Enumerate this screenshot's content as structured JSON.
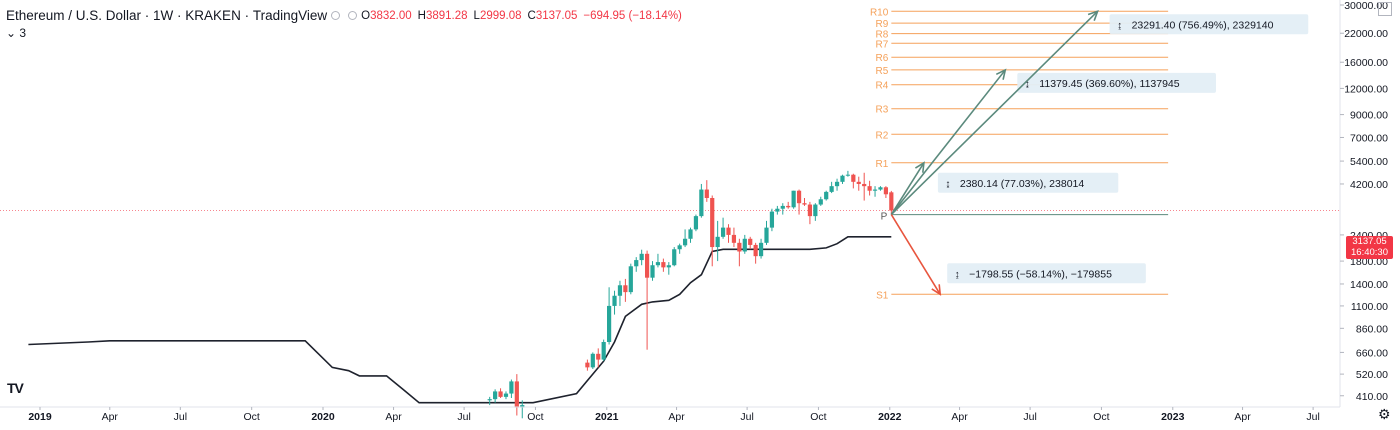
{
  "legend": {
    "symbol": "Ethereum / U.S. Dollar",
    "interval": "1W",
    "exchange": "KRAKEN",
    "source": "TradingView",
    "o_label": "O",
    "o_value": "3832.00",
    "h_label": "H",
    "h_value": "3891.28",
    "l_label": "L",
    "l_value": "2999.08",
    "c_label": "C",
    "c_value": "3137.05",
    "change": "−694.95 (−18.14%)",
    "sub_indicator": "3"
  },
  "price_tag": {
    "price": "3137.05",
    "countdown": "16:40:30"
  },
  "logo_text": "TV",
  "icons": {
    "gear": "gear-icon",
    "logo": "tradingview-logo-icon",
    "layout": "layout-icon"
  },
  "colors": {
    "up": "#26a69a",
    "down": "#ef5350",
    "pivot": "#f5a15a",
    "pivot_line": "#5b8a7d",
    "projection_up": "#5b8a7d",
    "projection_down": "#e8553e",
    "trend": "#1e222d"
  },
  "chart_data": {
    "type": "candlestick",
    "interval": "1W",
    "y_scale": "log",
    "ylim": [
      400,
      30000
    ],
    "y_ticks": [
      "30000.00",
      "22000.00",
      "16000.00",
      "12000.00",
      "9000.00",
      "7000.00",
      "5400.00",
      "4200.00",
      "3137.05",
      "2400.00",
      "1800.00",
      "1400.00",
      "1100.00",
      "860.00",
      "660.00",
      "520.00",
      "410.00"
    ],
    "x_ticks": [
      "2019",
      "Apr",
      "Jul",
      "Oct",
      "2020",
      "Apr",
      "Jul",
      "Oct",
      "2021",
      "Apr",
      "Jul",
      "Oct",
      "2022",
      "Apr",
      "Jul",
      "Oct",
      "2023",
      "Apr",
      "Jul"
    ],
    "x_tick_year_labels": [
      "2019",
      "2020",
      "2021",
      "2022",
      "2023"
    ],
    "last_close": 3137.05,
    "candles": [
      {
        "week": "2020-08-03",
        "o": 390,
        "h": 405,
        "l": 370,
        "c": 395
      },
      {
        "week": "2020-08-10",
        "o": 395,
        "h": 440,
        "l": 380,
        "c": 430
      },
      {
        "week": "2020-08-17",
        "o": 430,
        "h": 445,
        "l": 400,
        "c": 405
      },
      {
        "week": "2020-08-24",
        "o": 405,
        "h": 430,
        "l": 395,
        "c": 420
      },
      {
        "week": "2020-08-31",
        "o": 420,
        "h": 490,
        "l": 400,
        "c": 480
      },
      {
        "week": "2020-09-07",
        "o": 480,
        "h": 520,
        "l": 330,
        "c": 360
      },
      {
        "week": "2020-09-14",
        "o": 360,
        "h": 390,
        "l": 320,
        "c": 370
      },
      {
        "week": "2020-12-07",
        "o": 590,
        "h": 610,
        "l": 540,
        "c": 560
      },
      {
        "week": "2020-12-14",
        "o": 560,
        "h": 660,
        "l": 550,
        "c": 650
      },
      {
        "week": "2020-12-21",
        "o": 650,
        "h": 690,
        "l": 560,
        "c": 610
      },
      {
        "week": "2020-12-28",
        "o": 610,
        "h": 760,
        "l": 600,
        "c": 740
      },
      {
        "week": "2021-01-04",
        "o": 740,
        "h": 1350,
        "l": 720,
        "c": 1100
      },
      {
        "week": "2021-01-11",
        "o": 1100,
        "h": 1300,
        "l": 1000,
        "c": 1230
      },
      {
        "week": "2021-01-18",
        "o": 1230,
        "h": 1450,
        "l": 1100,
        "c": 1380
      },
      {
        "week": "2021-01-25",
        "o": 1380,
        "h": 1480,
        "l": 1150,
        "c": 1280
      },
      {
        "week": "2021-02-01",
        "o": 1280,
        "h": 1750,
        "l": 1250,
        "c": 1700
      },
      {
        "week": "2021-02-08",
        "o": 1700,
        "h": 1880,
        "l": 1600,
        "c": 1820
      },
      {
        "week": "2021-02-15",
        "o": 1820,
        "h": 2040,
        "l": 1720,
        "c": 1950
      },
      {
        "week": "2021-02-22",
        "o": 1950,
        "h": 2020,
        "l": 680,
        "c": 1500
      },
      {
        "week": "2021-03-01",
        "o": 1500,
        "h": 1800,
        "l": 1450,
        "c": 1720
      },
      {
        "week": "2021-03-08",
        "o": 1720,
        "h": 1950,
        "l": 1680,
        "c": 1780
      },
      {
        "week": "2021-03-15",
        "o": 1780,
        "h": 1850,
        "l": 1600,
        "c": 1680
      },
      {
        "week": "2021-03-22",
        "o": 1680,
        "h": 1780,
        "l": 1550,
        "c": 1720
      },
      {
        "week": "2021-03-29",
        "o": 1720,
        "h": 2100,
        "l": 1700,
        "c": 2050
      },
      {
        "week": "2021-04-05",
        "o": 2050,
        "h": 2180,
        "l": 1950,
        "c": 2140
      },
      {
        "week": "2021-04-12",
        "o": 2140,
        "h": 2550,
        "l": 2100,
        "c": 2300
      },
      {
        "week": "2021-04-19",
        "o": 2300,
        "h": 2600,
        "l": 2200,
        "c": 2550
      },
      {
        "week": "2021-04-26",
        "o": 2550,
        "h": 3000,
        "l": 2500,
        "c": 2950
      },
      {
        "week": "2021-05-03",
        "o": 2950,
        "h": 4200,
        "l": 2900,
        "c": 3950
      },
      {
        "week": "2021-05-10",
        "o": 3950,
        "h": 4380,
        "l": 3450,
        "c": 3600
      },
      {
        "week": "2021-05-17",
        "o": 3600,
        "h": 3700,
        "l": 1700,
        "c": 2100
      },
      {
        "week": "2021-05-24",
        "o": 2100,
        "h": 2800,
        "l": 1800,
        "c": 2350
      },
      {
        "week": "2021-05-31",
        "o": 2350,
        "h": 2900,
        "l": 2300,
        "c": 2600
      },
      {
        "week": "2021-06-07",
        "o": 2600,
        "h": 2700,
        "l": 2200,
        "c": 2400
      },
      {
        "week": "2021-06-14",
        "o": 2400,
        "h": 2600,
        "l": 2100,
        "c": 2200
      },
      {
        "week": "2021-06-21",
        "o": 2200,
        "h": 2300,
        "l": 1700,
        "c": 2000
      },
      {
        "week": "2021-06-28",
        "o": 2000,
        "h": 2400,
        "l": 1950,
        "c": 2300
      },
      {
        "week": "2021-07-05",
        "o": 2300,
        "h": 2350,
        "l": 2050,
        "c": 2150
      },
      {
        "week": "2021-07-12",
        "o": 2150,
        "h": 2200,
        "l": 1750,
        "c": 1900
      },
      {
        "week": "2021-07-19",
        "o": 1900,
        "h": 2300,
        "l": 1850,
        "c": 2200
      },
      {
        "week": "2021-07-26",
        "o": 2200,
        "h": 2800,
        "l": 2150,
        "c": 2600
      },
      {
        "week": "2021-08-02",
        "o": 2600,
        "h": 3200,
        "l": 2500,
        "c": 3100
      },
      {
        "week": "2021-08-09",
        "o": 3100,
        "h": 3300,
        "l": 3000,
        "c": 3200
      },
      {
        "week": "2021-08-16",
        "o": 3200,
        "h": 3400,
        "l": 3000,
        "c": 3300
      },
      {
        "week": "2021-08-23",
        "o": 3300,
        "h": 3450,
        "l": 3200,
        "c": 3250
      },
      {
        "week": "2021-08-30",
        "o": 3250,
        "h": 3900,
        "l": 3200,
        "c": 3900
      },
      {
        "week": "2021-09-06",
        "o": 3900,
        "h": 3950,
        "l": 3000,
        "c": 3400
      },
      {
        "week": "2021-09-13",
        "o": 3400,
        "h": 3600,
        "l": 3300,
        "c": 3350
      },
      {
        "week": "2021-09-20",
        "o": 3350,
        "h": 3450,
        "l": 2700,
        "c": 2950
      },
      {
        "week": "2021-09-27",
        "o": 2950,
        "h": 3400,
        "l": 2800,
        "c": 3350
      },
      {
        "week": "2021-10-04",
        "o": 3350,
        "h": 3650,
        "l": 3300,
        "c": 3550
      },
      {
        "week": "2021-10-11",
        "o": 3550,
        "h": 3900,
        "l": 3500,
        "c": 3850
      },
      {
        "week": "2021-10-18",
        "o": 3850,
        "h": 4300,
        "l": 3800,
        "c": 4100
      },
      {
        "week": "2021-10-25",
        "o": 4100,
        "h": 4450,
        "l": 3900,
        "c": 4300
      },
      {
        "week": "2021-11-01",
        "o": 4300,
        "h": 4650,
        "l": 4200,
        "c": 4600
      },
      {
        "week": "2021-11-08",
        "o": 4600,
        "h": 4850,
        "l": 4550,
        "c": 4650
      },
      {
        "week": "2021-11-15",
        "o": 4650,
        "h": 4700,
        "l": 4000,
        "c": 4300
      },
      {
        "week": "2021-11-22",
        "o": 4300,
        "h": 4550,
        "l": 3900,
        "c": 4200
      },
      {
        "week": "2021-11-29",
        "o": 4200,
        "h": 4750,
        "l": 3500,
        "c": 4100
      },
      {
        "week": "2021-12-06",
        "o": 4100,
        "h": 4350,
        "l": 3700,
        "c": 3900
      },
      {
        "week": "2021-12-13",
        "o": 3900,
        "h": 4100,
        "l": 3650,
        "c": 3950
      },
      {
        "week": "2021-12-20",
        "o": 3950,
        "h": 4100,
        "l": 3900,
        "c": 4050
      },
      {
        "week": "2021-12-27",
        "o": 4050,
        "h": 4100,
        "l": 3600,
        "c": 3750
      },
      {
        "week": "2022-01-03",
        "o": 3832,
        "h": 3891.28,
        "l": 2999.08,
        "c": 3137.05
      }
    ],
    "trend_line": {
      "name": "",
      "points": [
        {
          "week": "2018-12-17",
          "v": 720
        },
        {
          "week": "2019-03-04",
          "v": 740
        },
        {
          "week": "2019-04-01",
          "v": 750
        },
        {
          "week": "2019-12-09",
          "v": 750
        },
        {
          "week": "2020-01-13",
          "v": 560
        },
        {
          "week": "2020-02-03",
          "v": 540
        },
        {
          "week": "2020-02-17",
          "v": 510
        },
        {
          "week": "2020-03-23",
          "v": 510
        },
        {
          "week": "2020-04-13",
          "v": 440
        },
        {
          "week": "2020-05-04",
          "v": 380
        },
        {
          "week": "2020-09-28",
          "v": 380
        },
        {
          "week": "2020-11-23",
          "v": 420
        },
        {
          "week": "2020-12-14",
          "v": 520
        },
        {
          "week": "2020-12-28",
          "v": 600
        },
        {
          "week": "2021-01-11",
          "v": 740
        },
        {
          "week": "2021-01-25",
          "v": 980
        },
        {
          "week": "2021-02-15",
          "v": 1120
        },
        {
          "week": "2021-03-01",
          "v": 1150
        },
        {
          "week": "2021-03-22",
          "v": 1170
        },
        {
          "week": "2021-04-05",
          "v": 1250
        },
        {
          "week": "2021-04-19",
          "v": 1420
        },
        {
          "week": "2021-05-03",
          "v": 1550
        },
        {
          "week": "2021-05-17",
          "v": 2000
        },
        {
          "week": "2021-05-31",
          "v": 2050
        },
        {
          "week": "2021-07-26",
          "v": 2050
        },
        {
          "week": "2021-09-20",
          "v": 2050
        },
        {
          "week": "2021-10-11",
          "v": 2080
        },
        {
          "week": "2021-10-25",
          "v": 2180
        },
        {
          "week": "2021-11-08",
          "v": 2350
        },
        {
          "week": "2021-12-13",
          "v": 2350
        },
        {
          "week": "2022-01-03",
          "v": 2350
        }
      ]
    },
    "pivots": {
      "start_week": "2022-01-03",
      "end_week": "2022-12-26",
      "P": 3000,
      "levels": [
        {
          "label": "S1",
          "v": 1250
        },
        {
          "label": "R1",
          "v": 5300
        },
        {
          "label": "R2",
          "v": 7250
        },
        {
          "label": "R3",
          "v": 9600
        },
        {
          "label": "R4",
          "v": 12500
        },
        {
          "label": "R5",
          "v": 14700
        },
        {
          "label": "R6",
          "v": 16900
        },
        {
          "label": "R7",
          "v": 19700
        },
        {
          "label": "R8",
          "v": 21900
        },
        {
          "label": "R9",
          "v": 24600
        },
        {
          "label": "R10",
          "v": 28000
        }
      ]
    },
    "projections": [
      {
        "to_week": "2022-02-14",
        "to_v": 5300,
        "label": "2380.14 (77.03%), 238014",
        "dir": "up"
      },
      {
        "to_week": "2022-05-30",
        "to_v": 14700,
        "label": "11379.45 (369.60%), 1137945",
        "dir": "up"
      },
      {
        "to_week": "2022-09-26",
        "to_v": 28000,
        "label": "23291.40 (756.49%), 2329140",
        "dir": "up"
      },
      {
        "to_week": "2022-03-07",
        "to_v": 1250,
        "label": "−1798.55 (−58.14%), −179855",
        "dir": "down"
      }
    ],
    "pivot_label": "P"
  }
}
